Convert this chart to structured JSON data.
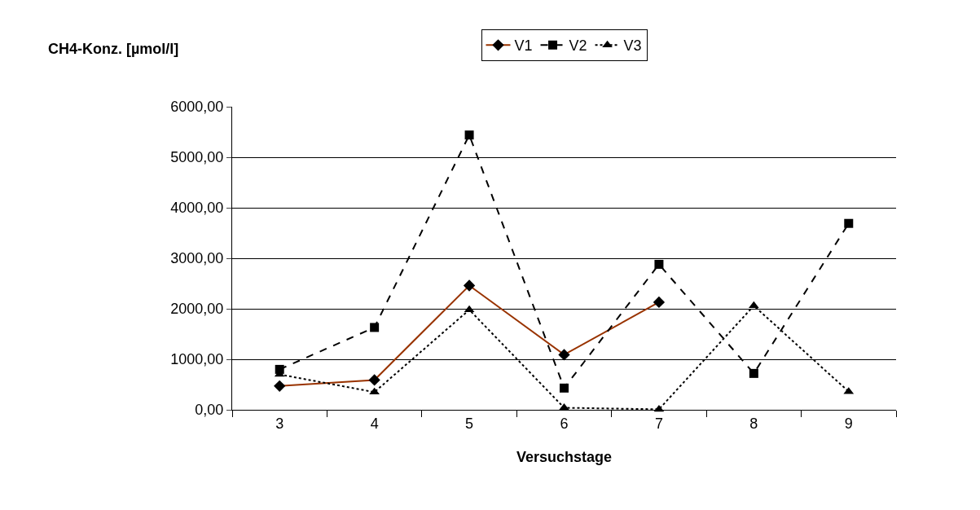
{
  "chart_data": {
    "type": "line",
    "xlabel": "Versuchstage",
    "ylabel": "CH4-Konz. [µmol/l]",
    "categories": [
      "3",
      "4",
      "5",
      "6",
      "7",
      "8",
      "9"
    ],
    "series": [
      {
        "name": "V1",
        "color": "#993300",
        "line_style": "solid",
        "marker": "diamond",
        "values": [
          470,
          590,
          2460,
          1090,
          2130,
          null,
          null
        ]
      },
      {
        "name": "V2",
        "color": "#000000",
        "line_style": "dashed",
        "marker": "square",
        "values": [
          800,
          1630,
          5440,
          430,
          2880,
          720,
          3690
        ]
      },
      {
        "name": "V3",
        "color": "#000000",
        "line_style": "dotted",
        "marker": "triangle",
        "values": [
          700,
          350,
          1980,
          40,
          10,
          2060,
          360
        ]
      }
    ],
    "ylim": [
      0,
      6000
    ],
    "yticks": [
      {
        "value": 0,
        "label": "0,00"
      },
      {
        "value": 1000,
        "label": "1000,00"
      },
      {
        "value": 2000,
        "label": "2000,00"
      },
      {
        "value": 3000,
        "label": "3000,00"
      },
      {
        "value": 4000,
        "label": "4000,00"
      },
      {
        "value": 5000,
        "label": "5000,00"
      },
      {
        "value": 6000,
        "label": "6000,00"
      }
    ],
    "grid": "y",
    "legend": "top"
  }
}
